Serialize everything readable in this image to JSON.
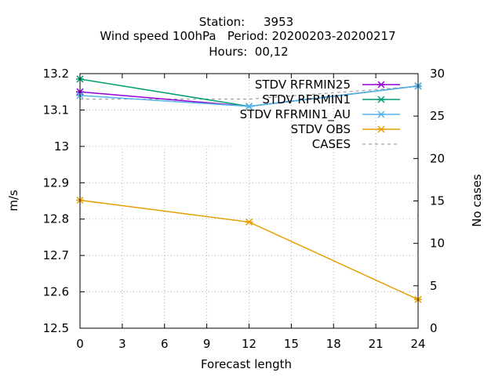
{
  "chart_data": {
    "type": "line",
    "title_lines": [
      "Station:     3953",
      "Wind speed 100hPa   Period: 20200203-20200217",
      "Hours:  00,12"
    ],
    "xlabel": "Forecast length",
    "ylabel": "m/s",
    "y2label": "No cases",
    "xlim": [
      0,
      24
    ],
    "ylim": [
      12.5,
      13.2
    ],
    "y2lim": [
      0,
      30
    ],
    "x_ticks": [
      "0",
      "3",
      "6",
      "9",
      "12",
      "15",
      "18",
      "21",
      "24"
    ],
    "y_ticks": [
      "12.5",
      "12.6",
      "12.7",
      "12.8",
      "12.9",
      "13",
      "13.1",
      "13.2"
    ],
    "y2_ticks": [
      "0",
      "5",
      "10",
      "15",
      "20",
      "25",
      "30"
    ],
    "grid": true,
    "legend_position": "top-right",
    "series": [
      {
        "name": "STDV RFRMIN25",
        "color": "#9400d3",
        "axis": "y",
        "marker": "cross",
        "x": [
          0,
          12,
          24
        ],
        "values": [
          13.15,
          13.11,
          13.166
        ]
      },
      {
        "name": "STDV RFRMIN1",
        "color": "#009e73",
        "axis": "y",
        "marker": "cross",
        "x": [
          0,
          12,
          24
        ],
        "values": [
          13.185,
          13.11,
          13.166
        ]
      },
      {
        "name": "STDV RFRMIN1_AU",
        "color": "#56b4e9",
        "axis": "y",
        "marker": "cross",
        "x": [
          0,
          12,
          24
        ],
        "values": [
          13.14,
          13.11,
          13.166
        ]
      },
      {
        "name": "STDV OBS",
        "color": "#e69f00",
        "axis": "y",
        "marker": "cross",
        "x": [
          0,
          12,
          24
        ],
        "values": [
          12.852,
          12.792,
          12.579
        ]
      },
      {
        "name": "CASES",
        "color": "#a0a0a0",
        "axis": "y2",
        "marker": "none",
        "dashed": true,
        "x": [
          0,
          12,
          24
        ],
        "values": [
          27,
          27,
          28.5
        ]
      }
    ]
  }
}
